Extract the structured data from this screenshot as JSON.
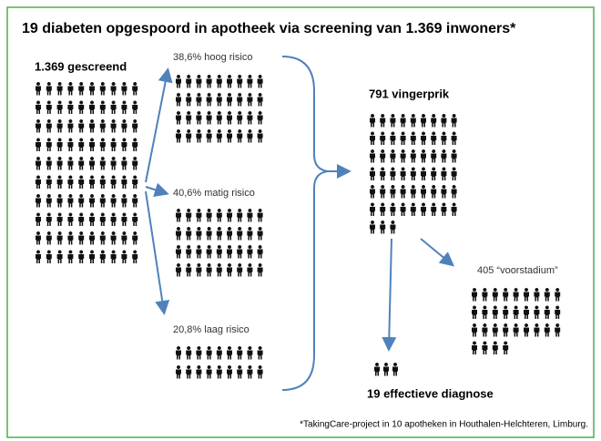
{
  "title": "19 diabeten opgespoord in apotheek via screening van 1.369 inwoners*",
  "screened": "1.369 gescreend",
  "high_risk": "38,6% hoog risico",
  "medium_risk": "40,6% matig risico",
  "low_risk": "20,8% laag risico",
  "finger_prick": "791 vingerprik",
  "prestage": "405 “voorstadium”",
  "diagnosis": "19 effectieve diagnose",
  "footnote": "*TakingCare-project in 10 apotheken in Houthalen-Helchteren, Limburg."
}
